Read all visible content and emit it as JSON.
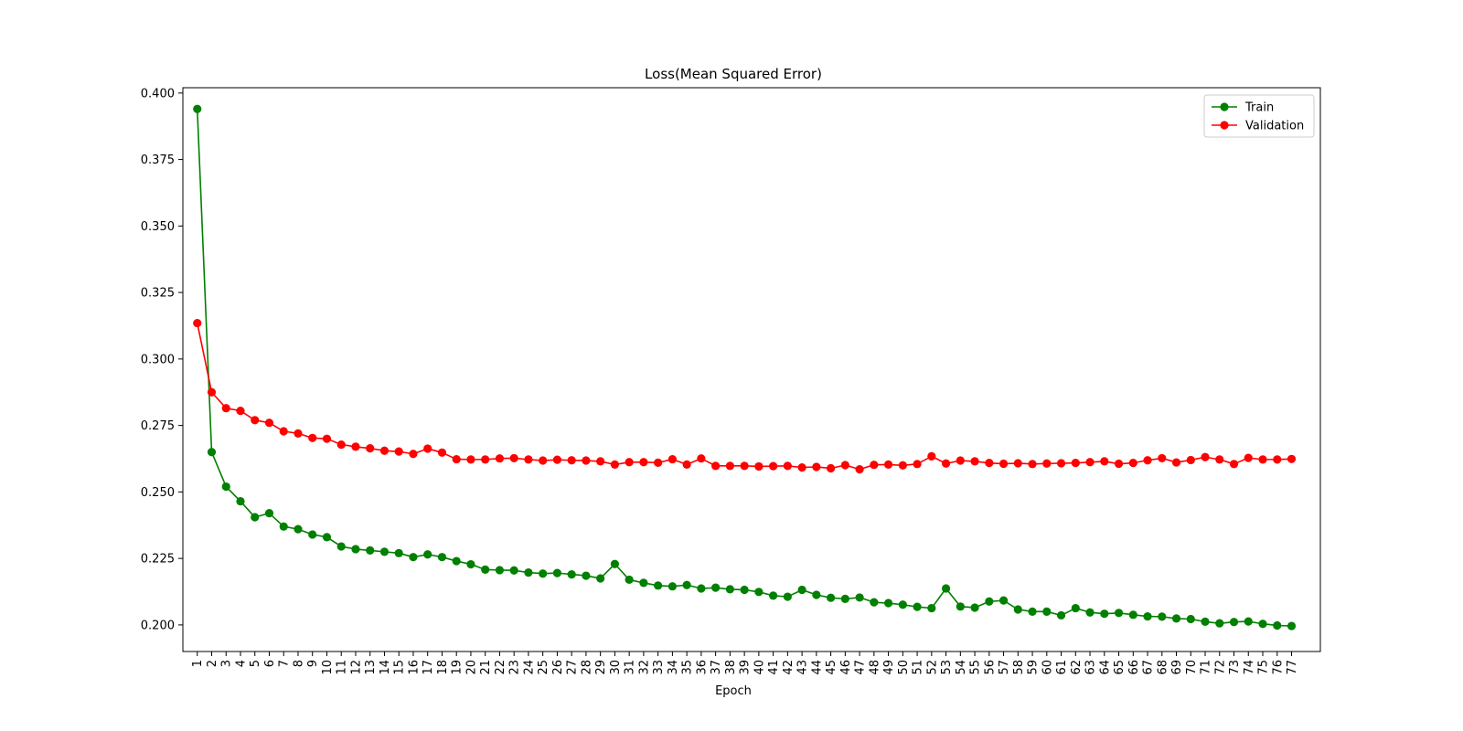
{
  "chart_data": {
    "type": "line",
    "title": "Loss(Mean Squared Error)",
    "xlabel": "Epoch",
    "ylabel": "",
    "x": [
      1,
      2,
      3,
      4,
      5,
      6,
      7,
      8,
      9,
      10,
      11,
      12,
      13,
      14,
      15,
      16,
      17,
      18,
      19,
      20,
      21,
      22,
      23,
      24,
      25,
      26,
      27,
      28,
      29,
      30,
      31,
      32,
      33,
      34,
      35,
      36,
      37,
      38,
      39,
      40,
      41,
      42,
      43,
      44,
      45,
      46,
      47,
      48,
      49,
      50,
      51,
      52,
      53,
      54,
      55,
      56,
      57,
      58,
      59,
      60,
      61,
      62,
      63,
      64,
      65,
      66,
      67,
      68,
      69,
      70,
      71,
      72,
      73,
      74,
      75,
      76,
      77
    ],
    "xticks": [
      "1",
      "2",
      "3",
      "4",
      "5",
      "6",
      "7",
      "8",
      "9",
      "10",
      "11",
      "12",
      "13",
      "14",
      "15",
      "16",
      "17",
      "18",
      "19",
      "20",
      "21",
      "22",
      "23",
      "24",
      "25",
      "26",
      "27",
      "28",
      "29",
      "30",
      "31",
      "32",
      "33",
      "34",
      "35",
      "36",
      "37",
      "38",
      "39",
      "40",
      "41",
      "42",
      "43",
      "44",
      "45",
      "46",
      "47",
      "48",
      "49",
      "50",
      "51",
      "52",
      "53",
      "54",
      "55",
      "56",
      "57",
      "58",
      "59",
      "60",
      "61",
      "62",
      "63",
      "64",
      "65",
      "66",
      "67",
      "68",
      "69",
      "70",
      "71",
      "72",
      "73",
      "74",
      "75",
      "76",
      "77"
    ],
    "yticks": [
      "0.200",
      "0.225",
      "0.250",
      "0.275",
      "0.300",
      "0.325",
      "0.350",
      "0.375",
      "0.400"
    ],
    "ylim": [
      0.19,
      0.402
    ],
    "legend_position": "top-right",
    "grid": false,
    "series": [
      {
        "name": "Train",
        "color": "#008000",
        "values": [
          0.394,
          0.265,
          0.252,
          0.2465,
          0.2405,
          0.242,
          0.237,
          0.236,
          0.234,
          0.233,
          0.2295,
          0.2285,
          0.228,
          0.2275,
          0.227,
          0.2255,
          0.2265,
          0.2255,
          0.224,
          0.2228,
          0.2208,
          0.2206,
          0.2205,
          0.2197,
          0.2193,
          0.2195,
          0.219,
          0.2185,
          0.2175,
          0.2229,
          0.217,
          0.2158,
          0.2148,
          0.2145,
          0.215,
          0.2137,
          0.214,
          0.2134,
          0.2132,
          0.2124,
          0.211,
          0.2106,
          0.2132,
          0.2113,
          0.2102,
          0.2098,
          0.2103,
          0.2085,
          0.2082,
          0.2076,
          0.2068,
          0.2063,
          0.2137,
          0.2069,
          0.2065,
          0.2088,
          0.2092,
          0.2058,
          0.205,
          0.205,
          0.2036,
          0.2063,
          0.2047,
          0.2042,
          0.2045,
          0.2038,
          0.2032,
          0.2031,
          0.2024,
          0.2022,
          0.2012,
          0.2006,
          0.2011,
          0.2013,
          0.2004,
          0.1998,
          0.1996
        ]
      },
      {
        "name": "Validation",
        "color": "#ff0000",
        "values": [
          0.3135,
          0.2875,
          0.2815,
          0.2805,
          0.277,
          0.276,
          0.2728,
          0.272,
          0.2703,
          0.27,
          0.2678,
          0.267,
          0.2664,
          0.2655,
          0.2652,
          0.2643,
          0.2663,
          0.2648,
          0.2623,
          0.2622,
          0.2622,
          0.2626,
          0.2627,
          0.2622,
          0.2618,
          0.2621,
          0.2619,
          0.2618,
          0.2615,
          0.2603,
          0.2612,
          0.2612,
          0.261,
          0.2623,
          0.2603,
          0.2626,
          0.2598,
          0.2598,
          0.2598,
          0.2596,
          0.2597,
          0.2598,
          0.2592,
          0.2594,
          0.2589,
          0.2601,
          0.2585,
          0.2602,
          0.2603,
          0.26,
          0.2605,
          0.2634,
          0.2607,
          0.2618,
          0.2615,
          0.2609,
          0.2606,
          0.2608,
          0.2605,
          0.2607,
          0.2608,
          0.2609,
          0.2612,
          0.2615,
          0.2606,
          0.2609,
          0.2619,
          0.2627,
          0.2611,
          0.262,
          0.2631,
          0.2622,
          0.2605,
          0.2628,
          0.2622,
          0.2622,
          0.2624
        ]
      }
    ]
  }
}
